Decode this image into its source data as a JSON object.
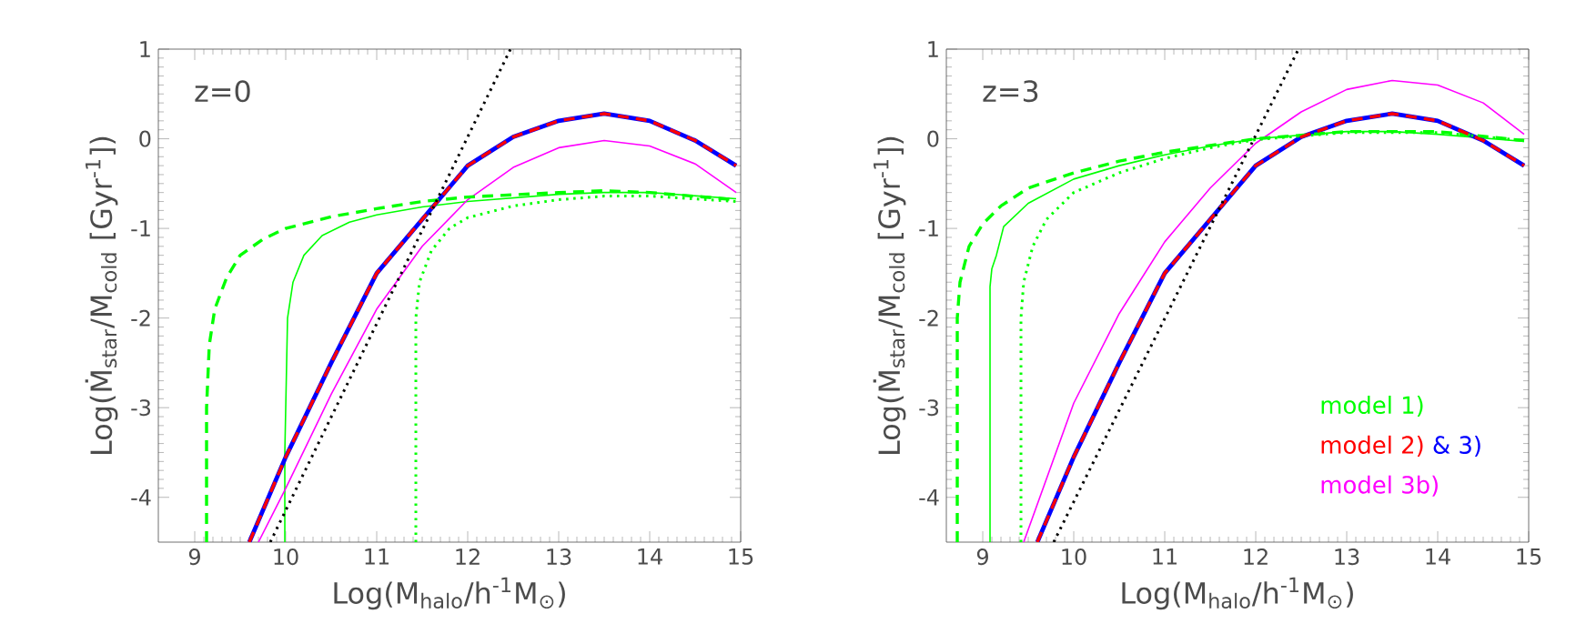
{
  "chart_data": [
    {
      "type": "line",
      "annotations": [
        "z=0"
      ],
      "xlabel": "Log(M$_{halo}$/h$^{-1}$M$_{⊙}$)",
      "ylabel": "Log(Ṁ$_{star}$/M$_{cold}$ [Gyr$^{-1}$])",
      "xlim": [
        8.6,
        15
      ],
      "ylim": [
        -4.5,
        1
      ],
      "xticks": [
        9,
        10,
        11,
        12,
        13,
        14,
        15
      ],
      "yticks": [
        -4,
        -3,
        -2,
        -1,
        0,
        1
      ],
      "series": [
        {
          "color": "#00ff00",
          "line_style": "solid",
          "x": [
            9.99,
            9.99,
            10.02,
            10.08,
            10.2,
            10.4,
            10.7,
            11,
            11.5,
            12,
            13,
            13.5,
            14,
            14.95
          ],
          "values": [
            -4.5,
            -3.5,
            -2.0,
            -1.6,
            -1.3,
            -1.08,
            -0.93,
            -0.85,
            -0.76,
            -0.7,
            -0.62,
            -0.6,
            -0.6,
            -0.67
          ]
        },
        {
          "color": "#00ff00",
          "line_style": "dashed",
          "x": [
            9.13,
            9.13,
            9.16,
            9.22,
            9.35,
            9.5,
            9.75,
            10,
            10.5,
            11,
            11.5,
            12,
            13,
            13.5,
            14,
            14.95
          ],
          "values": [
            -4.5,
            -3.0,
            -2.3,
            -1.9,
            -1.55,
            -1.3,
            -1.12,
            -1.0,
            -0.87,
            -0.78,
            -0.7,
            -0.65,
            -0.6,
            -0.58,
            -0.6,
            -0.68
          ]
        },
        {
          "color": "#00ff00",
          "line_style": "dotted",
          "x": [
            11.43,
            11.43,
            11.47,
            11.6,
            11.8,
            12,
            12.5,
            13,
            13.5,
            14,
            14.95
          ],
          "values": [
            -4.5,
            -2.0,
            -1.6,
            -1.25,
            -1.0,
            -0.88,
            -0.75,
            -0.68,
            -0.64,
            -0.64,
            -0.7
          ]
        },
        {
          "color": "#ff0000",
          "line_style": "dashed",
          "x": [
            9.6,
            10,
            10.5,
            11,
            11.5,
            12,
            12.5,
            13,
            13.5,
            14,
            14.5,
            14.95
          ],
          "values": [
            -4.5,
            -3.55,
            -2.5,
            -1.5,
            -0.9,
            -0.3,
            0.02,
            0.2,
            0.28,
            0.2,
            -0.02,
            -0.3
          ]
        },
        {
          "color": "#0000ff",
          "line_style": "solid",
          "x": [
            9.6,
            10,
            10.5,
            11,
            11.5,
            12,
            12.5,
            13,
            13.5,
            14,
            14.5,
            14.95
          ],
          "values": [
            -4.5,
            -3.55,
            -2.5,
            -1.5,
            -0.9,
            -0.3,
            0.02,
            0.2,
            0.28,
            0.2,
            -0.02,
            -0.3
          ]
        },
        {
          "color": "#ff00ff",
          "line_style": "solid",
          "x": [
            9.7,
            10,
            10.5,
            11,
            11.5,
            12,
            12.5,
            13,
            13.5,
            14,
            14.5,
            14.95
          ],
          "values": [
            -4.5,
            -3.9,
            -2.85,
            -1.9,
            -1.2,
            -0.68,
            -0.32,
            -0.1,
            -0.02,
            -0.08,
            -0.28,
            -0.6
          ]
        },
        {
          "color": "#000000",
          "line_style": "dotted",
          "x": [
            9.83,
            12.47
          ],
          "values": [
            -4.5,
            1
          ]
        }
      ]
    },
    {
      "type": "line",
      "annotations": [
        "z=3"
      ],
      "xlabel": "Log(M$_{halo}$/h$^{-1}$M$_{⊙}$)",
      "ylabel": "Log(Ṁ$_{star}$/M$_{cold}$ [Gyr$^{-1}$])",
      "xlim": [
        8.6,
        15
      ],
      "ylim": [
        -4.5,
        1
      ],
      "xticks": [
        9,
        10,
        11,
        12,
        13,
        14,
        15
      ],
      "yticks": [
        -4,
        -3,
        -2,
        -1,
        0,
        1
      ],
      "legend": "bottom right",
      "series": [
        {
          "name": "model 1)",
          "color": "#00ff00",
          "line_style": "solid",
          "x": [
            9.08,
            9.08,
            9.1,
            9.15,
            9.23,
            9.5,
            10,
            10.5,
            11,
            11.5,
            12,
            13,
            13.5,
            14,
            14.95
          ],
          "values": [
            -4.5,
            -1.65,
            -1.45,
            -1.3,
            -0.98,
            -0.72,
            -0.45,
            -0.3,
            -0.18,
            -0.08,
            0.0,
            0.08,
            0.08,
            0.05,
            -0.03
          ]
        },
        {
          "color": "#00ff00",
          "line_style": "dashed",
          "x": [
            8.72,
            8.72,
            8.75,
            8.85,
            9.0,
            9.2,
            9.5,
            10,
            10.5,
            11,
            12,
            13,
            14,
            14.95
          ],
          "values": [
            -4.5,
            -2.0,
            -1.6,
            -1.2,
            -0.95,
            -0.75,
            -0.55,
            -0.38,
            -0.25,
            -0.15,
            0.0,
            0.08,
            0.08,
            -0.02
          ]
        },
        {
          "color": "#00ff00",
          "line_style": "dotted",
          "x": [
            9.42,
            9.42,
            9.45,
            9.55,
            9.7,
            10,
            10.5,
            11,
            11.5,
            12,
            13,
            14,
            14.95
          ],
          "values": [
            -4.5,
            -2.0,
            -1.6,
            -1.2,
            -0.9,
            -0.6,
            -0.38,
            -0.22,
            -0.1,
            -0.01,
            0.07,
            0.07,
            -0.02
          ]
        },
        {
          "name": "model 2)",
          "color": "#ff0000",
          "line_style": "dashed",
          "x": [
            9.6,
            10,
            10.5,
            11,
            11.5,
            12,
            12.5,
            13,
            13.5,
            14,
            14.5,
            14.95
          ],
          "values": [
            -4.5,
            -3.55,
            -2.5,
            -1.5,
            -0.9,
            -0.3,
            0.02,
            0.2,
            0.28,
            0.2,
            -0.02,
            -0.3
          ]
        },
        {
          "name": "& 3)",
          "color": "#0000ff",
          "line_style": "solid",
          "x": [
            9.6,
            10,
            10.5,
            11,
            11.5,
            12,
            12.5,
            13,
            13.5,
            14,
            14.5,
            14.95
          ],
          "values": [
            -4.5,
            -3.55,
            -2.5,
            -1.5,
            -0.9,
            -0.3,
            0.02,
            0.2,
            0.28,
            0.2,
            -0.02,
            -0.3
          ]
        },
        {
          "name": "model 3b)",
          "color": "#ff00ff",
          "line_style": "solid",
          "x": [
            9.45,
            10,
            10.5,
            11,
            11.5,
            12,
            12.5,
            13,
            13.5,
            14,
            14.5,
            14.95
          ],
          "values": [
            -4.5,
            -2.95,
            -1.95,
            -1.15,
            -0.55,
            -0.05,
            0.3,
            0.55,
            0.65,
            0.6,
            0.4,
            0.05
          ]
        },
        {
          "color": "#000000",
          "line_style": "dotted",
          "x": [
            9.78,
            12.47
          ],
          "values": [
            -4.5,
            1
          ]
        }
      ]
    }
  ]
}
